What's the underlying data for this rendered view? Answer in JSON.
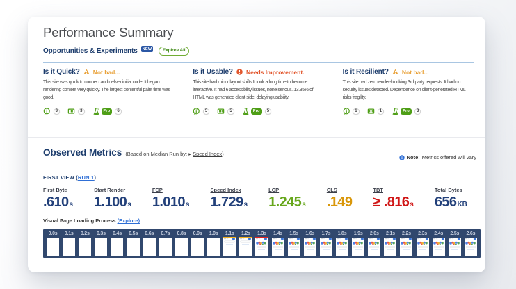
{
  "header": {
    "title": "Performance Summary"
  },
  "opportunities": {
    "heading": "Opportunities & Experiments",
    "new_badge": "NEW",
    "explore_all": "Explore All",
    "accent_rule_color": "#a9c6e2",
    "columns": [
      {
        "question": "Is it Quick?",
        "status": "Not bad...",
        "status_icon": "warning-triangle-icon",
        "status_color": "#e9a33c",
        "description": "This site was quick to connect and deliver initial code. It began rendering content very quickly. The largest contentful paint time was good.",
        "links": [
          {
            "icon": "observations-icon",
            "count": "3"
          },
          {
            "icon": "video-icon",
            "count": "3"
          },
          {
            "icon": "experiments-icon",
            "pro": "Pro",
            "count": "6"
          }
        ]
      },
      {
        "question": "Is it Usable?",
        "status": "Needs Improvement.",
        "status_icon": "alert-circle-icon",
        "status_color": "#e2572e",
        "description": "This site had minor layout shifts.It took a long time to become interactive. It had 6 accessibility issues, none serious. 13.35% of HTML was generated client-side, delaying usability.",
        "links": [
          {
            "icon": "observations-icon",
            "count": "5"
          },
          {
            "icon": "video-icon",
            "count": "5"
          },
          {
            "icon": "experiments-icon",
            "pro": "Pro",
            "count": "5"
          }
        ]
      },
      {
        "question": "Is it Resilient?",
        "status": "Not bad...",
        "status_icon": "warning-triangle-icon",
        "status_color": "#e9a33c",
        "description": "This site had zero render-blocking 3rd party requests. It had no security issues detected. Dependence on client-generated HTML risks fragility.",
        "links": [
          {
            "icon": "observations-icon",
            "count": "1"
          },
          {
            "icon": "video-icon",
            "count": "1"
          },
          {
            "icon": "experiments-icon",
            "pro": "Pro",
            "count": "3"
          }
        ]
      }
    ]
  },
  "observed_metrics": {
    "heading": "Observed Metrics",
    "caption_prefix": "(Based on Median Run by: ▸ ",
    "caption_link": "Speed Index",
    "caption_suffix": ")",
    "note_icon": "info-circle-icon",
    "note_bold": "Note:",
    "note_link": "Metrics offered will vary",
    "view_prefix": "FIRST VIEW (",
    "view_link": "RUN 1",
    "view_suffix": ")",
    "metrics": [
      {
        "label": "First Byte",
        "value": ".610",
        "unit": "s",
        "color": "#22407a",
        "underline": false
      },
      {
        "label": "Start Render",
        "value": "1.100",
        "unit": "s",
        "color": "#22407a",
        "underline": false
      },
      {
        "label": "FCP",
        "value": "1.010",
        "unit": "s",
        "color": "#22407a",
        "underline": true
      },
      {
        "label": "Speed Index",
        "value": "1.729",
        "unit": "s",
        "color": "#22407a",
        "underline": true
      },
      {
        "label": "LCP",
        "value": "1.245",
        "unit": "s",
        "color": "#67a71c",
        "underline": true
      },
      {
        "label": "CLS",
        "value": ".149",
        "unit": "",
        "color": "#d9970a",
        "underline": true
      },
      {
        "label": "TBT",
        "value": "≥ .816",
        "unit": "s",
        "color": "#d01616",
        "underline": true
      },
      {
        "label": "Total Bytes",
        "value": "656",
        "unit": "KB",
        "color": "#22407a",
        "underline": false
      }
    ]
  },
  "filmstrip": {
    "heading": "Visual Page Loading Process ",
    "explore_link": "(Explore)",
    "background": "#31486e",
    "border_yellow": "#f2b01e",
    "border_red": "#e42320",
    "frames": [
      {
        "time": "0.0s",
        "state": "blank",
        "border": "none"
      },
      {
        "time": "0.1s",
        "state": "blank",
        "border": "none"
      },
      {
        "time": "0.2s",
        "state": "blank",
        "border": "none"
      },
      {
        "time": "0.3s",
        "state": "blank",
        "border": "none"
      },
      {
        "time": "0.4s",
        "state": "blank",
        "border": "none"
      },
      {
        "time": "0.5s",
        "state": "blank",
        "border": "none"
      },
      {
        "time": "0.6s",
        "state": "blank",
        "border": "none"
      },
      {
        "time": "0.7s",
        "state": "blank",
        "border": "none"
      },
      {
        "time": "0.8s",
        "state": "blank",
        "border": "none"
      },
      {
        "time": "0.9s",
        "state": "blank",
        "border": "none"
      },
      {
        "time": "1.0s",
        "state": "blank",
        "border": "none"
      },
      {
        "time": "1.1s",
        "state": "partial",
        "border": "yellow"
      },
      {
        "time": "1.2s",
        "state": "partial",
        "border": "yellow"
      },
      {
        "time": "1.3s",
        "state": "full",
        "border": "red"
      },
      {
        "time": "1.4s",
        "state": "full",
        "border": "none"
      },
      {
        "time": "1.5s",
        "state": "full",
        "border": "none"
      },
      {
        "time": "1.6s",
        "state": "full",
        "border": "none"
      },
      {
        "time": "1.7s",
        "state": "full",
        "border": "none"
      },
      {
        "time": "1.8s",
        "state": "full",
        "border": "none"
      },
      {
        "time": "1.9s",
        "state": "full",
        "border": "none"
      },
      {
        "time": "2.0s",
        "state": "full",
        "border": "none"
      },
      {
        "time": "2.1s",
        "state": "full",
        "border": "none"
      },
      {
        "time": "2.2s",
        "state": "full",
        "border": "none"
      },
      {
        "time": "2.3s",
        "state": "full",
        "border": "none"
      },
      {
        "time": "2.4s",
        "state": "full",
        "border": "none"
      },
      {
        "time": "2.5s",
        "state": "full",
        "border": "none"
      },
      {
        "time": "2.6s",
        "state": "full",
        "border": "none"
      }
    ]
  }
}
